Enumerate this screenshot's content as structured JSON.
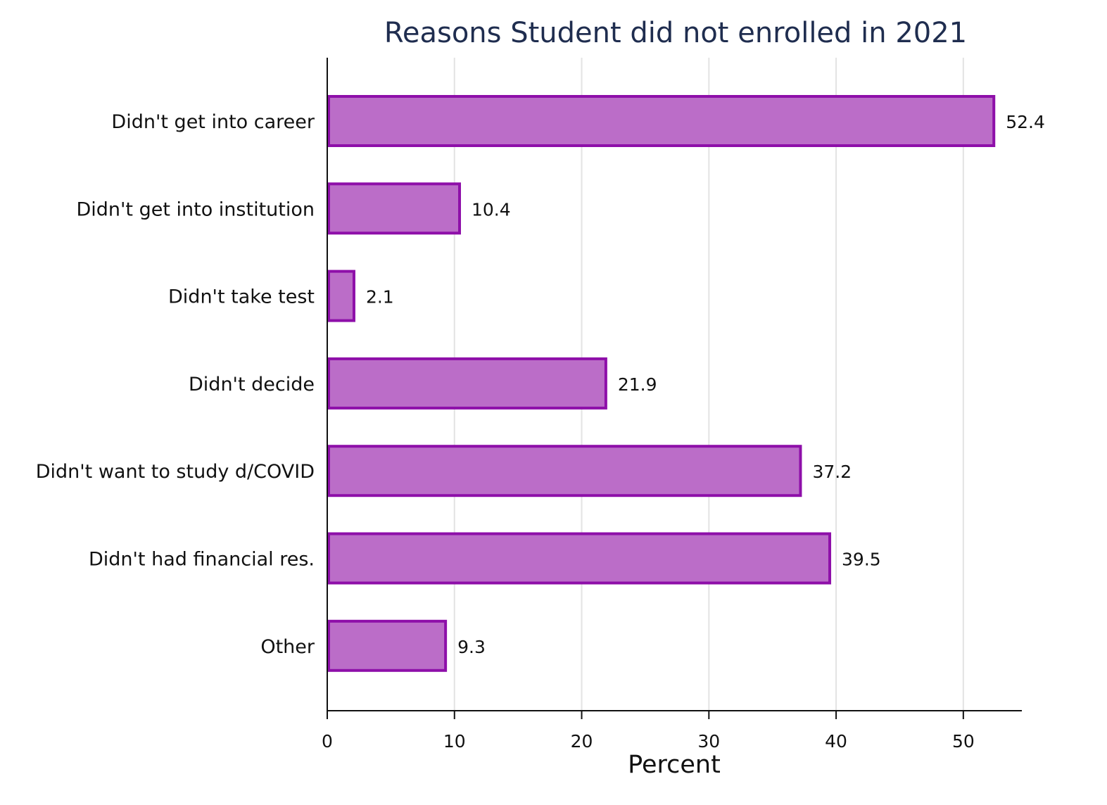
{
  "chart_data": {
    "type": "bar",
    "orientation": "horizontal",
    "title": "Reasons Student did not enrolled in 2021",
    "xlabel": "Percent",
    "ylabel": "",
    "categories": [
      "Didn't get into career",
      "Didn't get into institution",
      "Didn't take test",
      "Didn't decide",
      "Didn't want to study d/COVID",
      "Didn't had financial res.",
      "Other"
    ],
    "values": [
      52.4,
      10.4,
      2.1,
      21.9,
      37.2,
      39.5,
      9.3
    ],
    "value_labels": [
      "52.4",
      "10.4",
      "2.1",
      "21.9",
      "37.2",
      "39.5",
      "9.3"
    ],
    "xlim": [
      0,
      54.6
    ],
    "xticks": [
      0,
      10,
      20,
      30,
      40,
      50
    ],
    "xtick_labels": [
      "0",
      "10",
      "20",
      "30",
      "40",
      "50"
    ],
    "grid": "vertical",
    "legend": "none",
    "colors": {
      "bar_fill": "#bb6dc8",
      "bar_edge": "#8e0fa9",
      "title": "#1f2d4f"
    }
  }
}
